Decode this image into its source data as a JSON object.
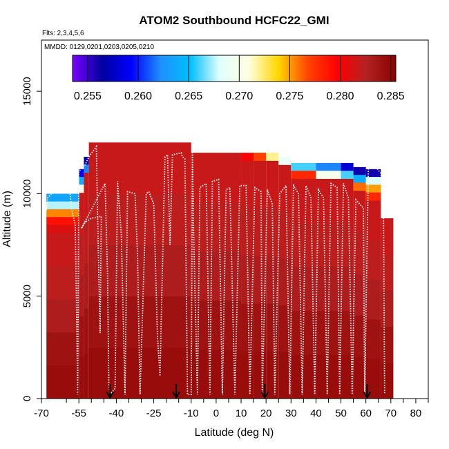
{
  "chart_data": {
    "type": "heatmap",
    "title": "ATOM2 Southbound HCFC22_GMI",
    "flights_note": "Flts: 2,3,4,5,6",
    "dates_note": "MMDD: 0129,0201,0203,0205,0210",
    "xlabel": "Latitude (deg N)",
    "ylabel": "Altitude (m)",
    "xlim": [
      -70,
      85
    ],
    "ylim": [
      0,
      17500
    ],
    "x_ticks_labeled": [
      -70,
      -55,
      -40,
      -25,
      -10,
      0,
      10,
      20,
      30,
      40,
      50,
      60,
      70,
      80
    ],
    "x_ticks_minor": [
      -60,
      -50,
      -45,
      -35,
      -30,
      -20,
      -15,
      -5,
      5,
      15,
      25,
      35,
      45,
      55,
      65,
      75,
      85
    ],
    "y_ticks": [
      0,
      5000,
      10000,
      15000
    ],
    "colorbar": {
      "range": [
        0.2535,
        0.2855
      ],
      "ticks": [
        0.255,
        0.26,
        0.265,
        0.27,
        0.275,
        0.28,
        0.285
      ],
      "tick_labels": [
        "0.255",
        "0.260",
        "0.265",
        "0.270",
        "0.275",
        "0.280",
        "0.285"
      ],
      "colors": [
        "#7a00ff",
        "#0000a0",
        "#0000ff",
        "#1e90ff",
        "#00bfff",
        "#e0ffff",
        "#ffffe0",
        "#ffd700",
        "#ff4500",
        "#ff0000",
        "#b22222",
        "#8b0000"
      ]
    },
    "curtain": {
      "base_value": 0.2835,
      "columns": [
        {
          "lat0": -68,
          "lat1": -55,
          "top": 10000,
          "upper_values": [
            0.2635,
            0.2675,
            0.2755,
            0.279,
            0.281
          ]
        },
        {
          "lat0": -55,
          "lat1": -53,
          "top": 11200,
          "upper_values": [
            0.259,
            0.264,
            0.27
          ]
        },
        {
          "lat0": -53,
          "lat1": -51,
          "top": 11800,
          "upper_values": [
            0.257,
            0.262
          ]
        },
        {
          "lat0": -51,
          "lat1": -10,
          "top": 12500,
          "upper_values": []
        },
        {
          "lat0": -10,
          "lat1": 10,
          "top": 12000,
          "upper_values": []
        },
        {
          "lat0": 10,
          "lat1": 15,
          "top": 12000,
          "upper_values": [
            0.28
          ]
        },
        {
          "lat0": 15,
          "lat1": 20,
          "top": 12000,
          "upper_values": [
            0.277
          ]
        },
        {
          "lat0": 20,
          "lat1": 25,
          "top": 12000,
          "upper_values": [
            0.272
          ]
        },
        {
          "lat0": 25,
          "lat1": 30,
          "top": 11800,
          "upper_values": [
            0.269
          ]
        },
        {
          "lat0": 30,
          "lat1": 40,
          "top": 11500,
          "upper_values": [
            0.266,
            0.278
          ]
        },
        {
          "lat0": 40,
          "lat1": 50,
          "top": 11500,
          "upper_values": [
            0.262,
            0.27
          ]
        },
        {
          "lat0": 50,
          "lat1": 55,
          "top": 11500,
          "upper_values": [
            0.258,
            0.266
          ]
        },
        {
          "lat0": 55,
          "lat1": 60,
          "top": 11300,
          "upper_values": [
            0.256,
            0.264,
            0.276
          ]
        },
        {
          "lat0": 60,
          "lat1": 66,
          "top": 11200,
          "upper_values": [
            0.256,
            0.268,
            0.275,
            0.278
          ]
        },
        {
          "lat0": 66,
          "lat1": 71,
          "top": 8800,
          "upper_values": []
        }
      ]
    },
    "flight_track": [
      [
        -68,
        9200
      ],
      [
        -67.5,
        9800
      ],
      [
        -66,
        10000
      ],
      [
        -62,
        10300
      ],
      [
        -59,
        10300
      ],
      [
        -58.5,
        10000
      ],
      [
        -58,
        9300
      ],
      [
        -57.5,
        9000
      ],
      [
        -56.5,
        8500
      ],
      [
        -56,
        5000
      ],
      [
        -55.5,
        200
      ],
      [
        -55,
        11100
      ],
      [
        -52.5,
        11400
      ],
      [
        -51,
        11800
      ],
      [
        -48,
        12300
      ],
      [
        -47.5,
        9000
      ],
      [
        -47,
        6000
      ],
      [
        -46.5,
        3200
      ],
      [
        -46,
        8900
      ],
      [
        -50,
        8800
      ],
      [
        -52.5,
        8600
      ],
      [
        -54,
        8300
      ],
      [
        -44.5,
        10500
      ],
      [
        -43.5,
        6000
      ],
      [
        -43,
        800
      ],
      [
        -42.5,
        200
      ],
      [
        -40.5,
        500
      ],
      [
        -39.5,
        10600
      ],
      [
        -38,
        8000
      ],
      [
        -36.5,
        200
      ],
      [
        -35.5,
        10100
      ],
      [
        -32.5,
        10000
      ],
      [
        -31.5,
        7000
      ],
      [
        -30.5,
        200
      ],
      [
        -28,
        10000
      ],
      [
        -27,
        10100
      ],
      [
        -25,
        9500
      ],
      [
        -23.5,
        3000
      ],
      [
        -22.5,
        1100
      ],
      [
        -20.5,
        11800
      ],
      [
        -19.5,
        11900
      ],
      [
        -18.5,
        7500
      ],
      [
        -17.5,
        11900
      ],
      [
        -14,
        12000
      ],
      [
        -13.5,
        11800
      ],
      [
        -12.5,
        11700
      ],
      [
        -11.5,
        200
      ],
      [
        -10,
        200
      ],
      [
        -9.5,
        12000
      ],
      [
        -9,
        8000
      ],
      [
        -7.5,
        200
      ],
      [
        -6.5,
        10300
      ],
      [
        -4,
        10500
      ],
      [
        -2.5,
        200
      ],
      [
        -1.5,
        10600
      ],
      [
        1,
        10700
      ],
      [
        2.5,
        200
      ],
      [
        4,
        10200
      ],
      [
        5.5,
        10300
      ],
      [
        7.5,
        200
      ],
      [
        9.5,
        10400
      ],
      [
        12,
        10400
      ],
      [
        13.5,
        200
      ],
      [
        15.5,
        10300
      ],
      [
        18,
        10100
      ],
      [
        18.5,
        200
      ],
      [
        20.5,
        10200
      ],
      [
        22.5,
        9500
      ],
      [
        23.5,
        200
      ],
      [
        25.5,
        10000
      ],
      [
        28,
        10400
      ],
      [
        29.5,
        200
      ],
      [
        31,
        10400
      ],
      [
        33,
        10000
      ],
      [
        34.5,
        200
      ],
      [
        36,
        10400
      ],
      [
        38,
        9800
      ],
      [
        39.5,
        200
      ],
      [
        41,
        10200
      ],
      [
        43,
        9800
      ],
      [
        44.5,
        200
      ],
      [
        46,
        10500
      ],
      [
        48.5,
        10300
      ],
      [
        49.5,
        200
      ],
      [
        51,
        10500
      ],
      [
        53,
        9800
      ],
      [
        54.5,
        200
      ],
      [
        56,
        9700
      ],
      [
        59,
        9300
      ],
      [
        59.5,
        200
      ],
      [
        61,
        11300
      ],
      [
        64,
        11300
      ],
      [
        66,
        11000
      ],
      [
        67,
        10000
      ],
      [
        67.5,
        200
      ]
    ],
    "arrows_lat": [
      -42.5,
      -16,
      19.5,
      60.5
    ]
  }
}
